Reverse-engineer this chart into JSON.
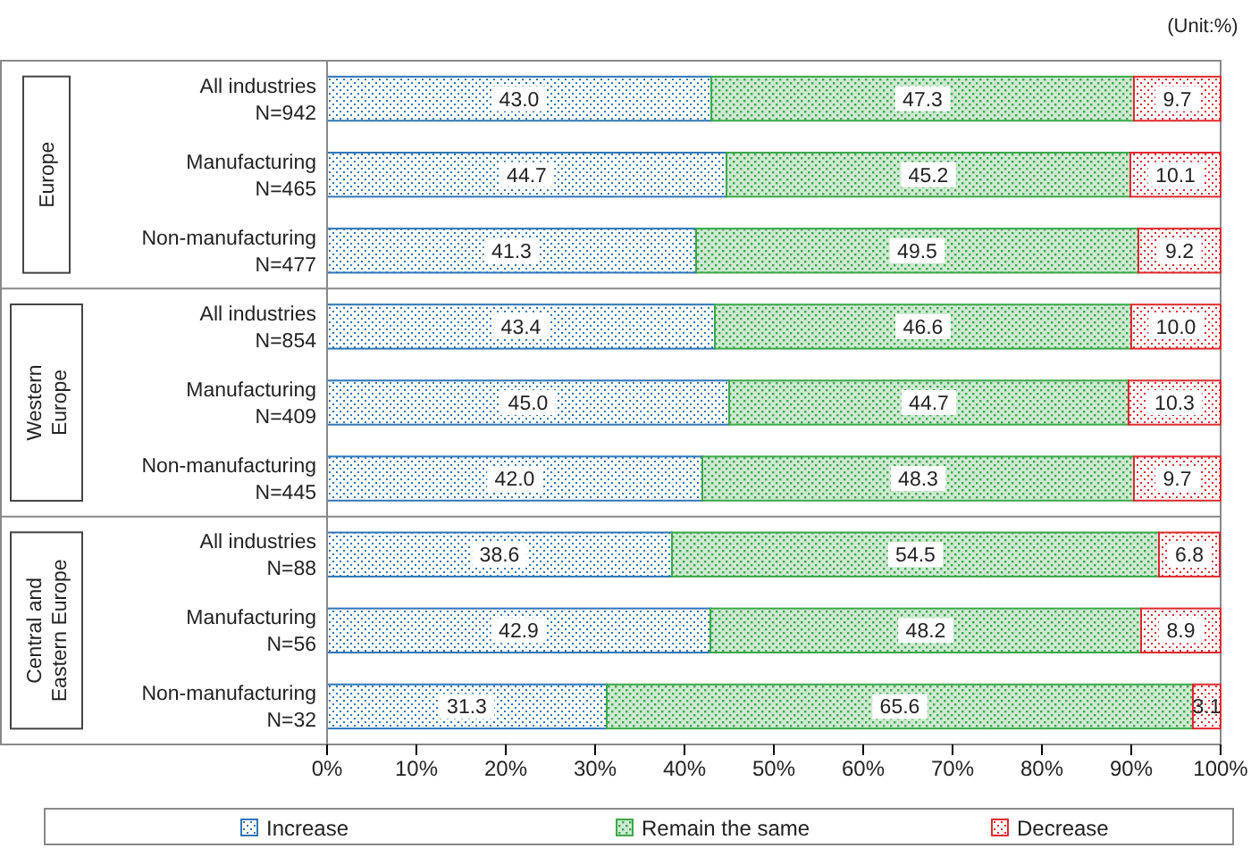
{
  "chart_data": {
    "type": "bar",
    "orientation": "horizontal",
    "stacked": true,
    "categories": [
      "All industries\nN=942",
      "Manufacturing\nN=465",
      "Non-manufacturing\nN=477",
      "All industries\nN=854",
      "Manufacturing\nN=409",
      "Non-manufacturing\nN=445",
      "All industries\nN=88",
      "Manufacturing\nN=56",
      "Non-manufacturing\nN=32"
    ],
    "series": [
      {
        "name": "Increase",
        "color": "#2e75b6",
        "values": [
          43.0,
          44.7,
          41.3,
          43.4,
          45.0,
          42.0,
          38.6,
          42.9,
          31.3
        ],
        "value_labels": [
          "43.0",
          "44.7",
          "41.3",
          "43.4",
          "45.0",
          "42.0",
          "38.6",
          "42.9",
          "31.3"
        ]
      },
      {
        "name": "Remain the same",
        "color": "#3ca84a",
        "values": [
          47.3,
          45.2,
          49.5,
          46.6,
          44.7,
          48.3,
          54.5,
          48.2,
          65.6
        ],
        "value_labels": [
          "47.3",
          "45.2",
          "49.5",
          "46.6",
          "44.7",
          "48.3",
          "54.5",
          "48.2",
          "65.6"
        ]
      },
      {
        "name": "Decrease",
        "color": "#e0282e",
        "values": [
          9.7,
          10.1,
          9.2,
          10.0,
          10.3,
          9.7,
          6.8,
          8.9,
          3.1
        ],
        "value_labels": [
          "9.7",
          "10.1",
          "9.2",
          "10.0",
          "10.3",
          "9.7",
          "6.8",
          "8.9",
          "3.1"
        ]
      }
    ],
    "xlim": [
      0,
      100
    ],
    "xticks": [
      {
        "value": 0,
        "label": "0%"
      },
      {
        "value": 10,
        "label": "10%"
      },
      {
        "value": 20,
        "label": "20%"
      },
      {
        "value": 30,
        "label": "30%"
      },
      {
        "value": 40,
        "label": "40%"
      },
      {
        "value": 50,
        "label": "50%"
      },
      {
        "value": 60,
        "label": "60%"
      },
      {
        "value": 70,
        "label": "70%"
      },
      {
        "value": 80,
        "label": "80%"
      },
      {
        "value": 90,
        "label": "90%"
      },
      {
        "value": 100,
        "label": "100%"
      }
    ],
    "grid": false,
    "legend": "bottom",
    "annotations": [
      "(Unit:%)",
      "Europe",
      "Western\nEurope",
      "Central and\nEastern Europe"
    ]
  }
}
